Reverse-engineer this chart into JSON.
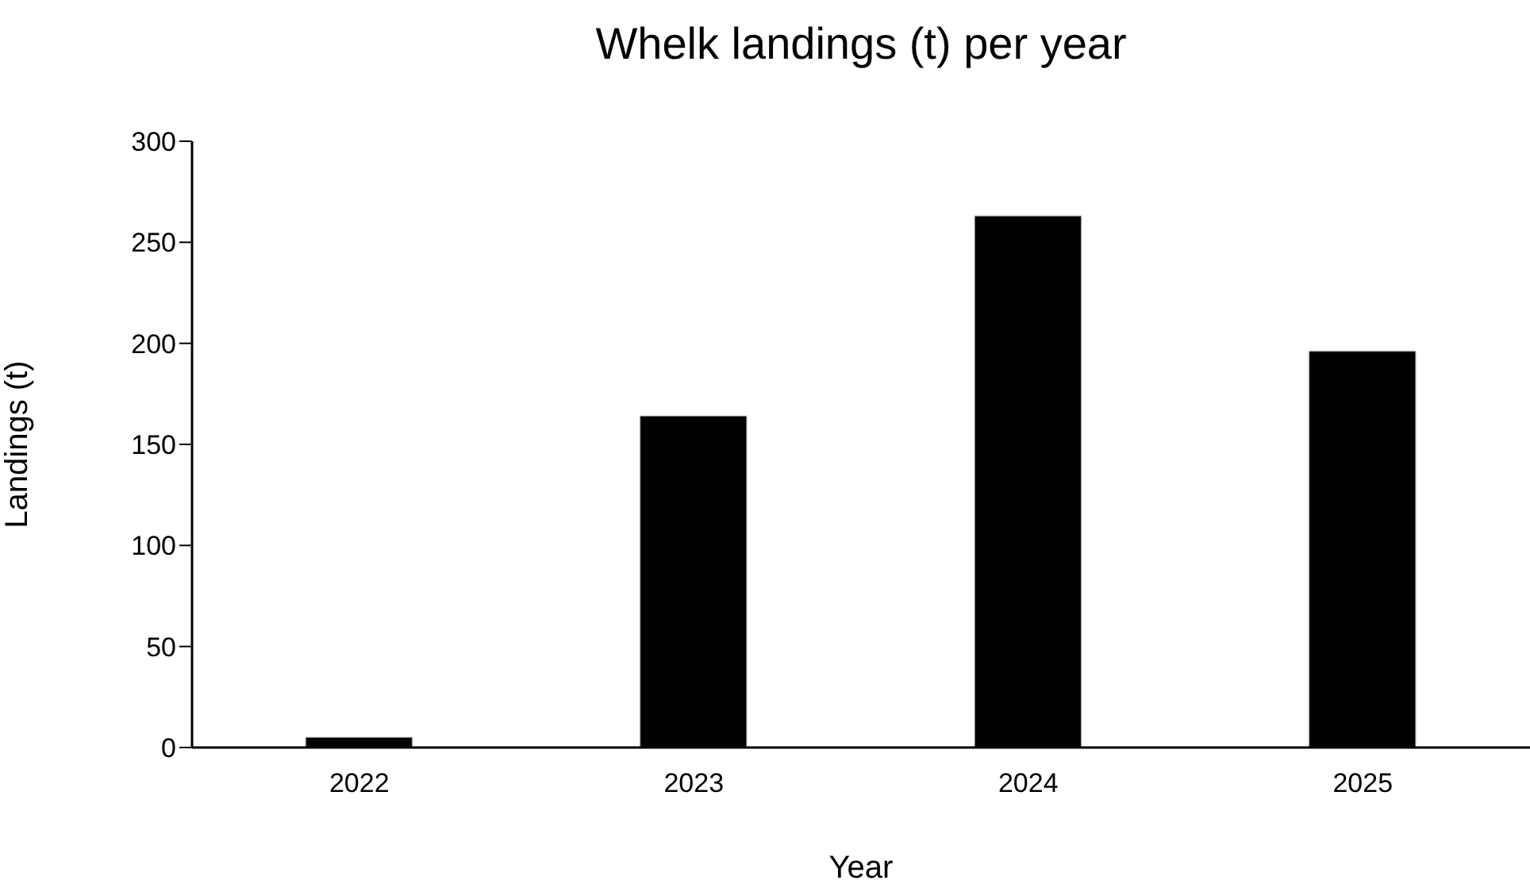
{
  "chart_data": {
    "type": "bar",
    "title": "Whelk landings (t) per year",
    "xlabel": "Year",
    "ylabel": "Landings (t)",
    "categories": [
      "2022",
      "2023",
      "2024",
      "2025"
    ],
    "values": [
      5,
      164,
      263,
      196
    ],
    "color": "#000000",
    "ylim": [
      0,
      300
    ],
    "yticks": [
      0,
      50,
      100,
      150,
      200,
      250,
      300
    ],
    "grid": false
  }
}
